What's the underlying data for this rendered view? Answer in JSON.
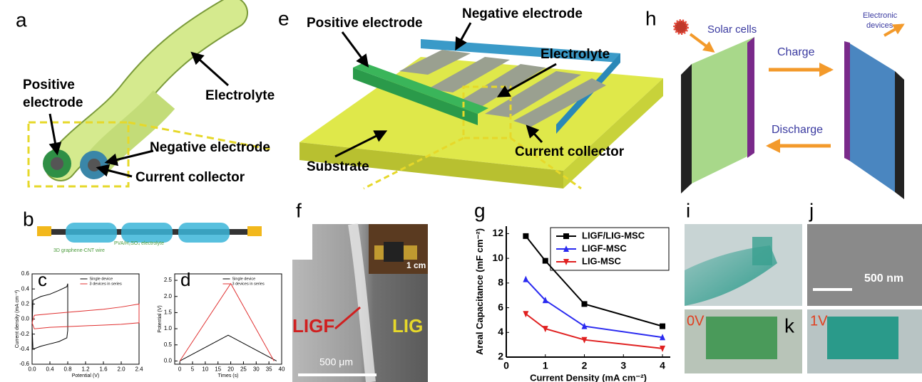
{
  "panels": {
    "a": {
      "label": "a",
      "positive_electrode": [
        "Positive",
        "electrode"
      ],
      "electrolyte": "Electrolyte",
      "negative_electrode": "Negative electrode",
      "current_collector": "Current collector"
    },
    "b": {
      "label": "b",
      "wire": "3D graphene-CNT wire",
      "electrolyte": "PVA/H₂SO₄ electrolyte"
    },
    "e": {
      "label": "e",
      "positive_electrode": "Positive electrode",
      "negative_electrode": "Negative electrode",
      "electrolyte": "Electrolyte",
      "current_collector": "Current collector",
      "substrate": "Substrate"
    },
    "f": {
      "label": "f",
      "ligf": "LIGF",
      "lig": "LIG",
      "inset_scale": "1 cm",
      "scale": "500 μm"
    },
    "h": {
      "label": "h",
      "solar_cells": "Solar cells",
      "electronic_devices": [
        "Electronic",
        "devices"
      ],
      "charge": "Charge",
      "discharge": "Discharge"
    },
    "i": {
      "label": "i"
    },
    "j": {
      "label": "j",
      "scale": "500 nm"
    },
    "k": {
      "label": "k",
      "off": "0V",
      "on": "1V"
    }
  },
  "chart_data": [
    {
      "type": "line",
      "label": "c",
      "xlabel": "Potential (V)",
      "ylabel": "Current density (mA cm⁻²)",
      "xlim": [
        0,
        2.4
      ],
      "xticks": [
        {
          "value": 0,
          "label": "0.0"
        },
        0.4,
        0.8,
        1.2,
        1.6,
        {
          "value": 2,
          "label": "2.0"
        },
        2.4
      ],
      "ylim": [
        -0.6,
        0.6
      ],
      "yticks": [
        -0.6,
        -0.4,
        -0.2,
        {
          "value": 0,
          "label": "0.0"
        },
        0.2,
        0.4,
        0.6
      ],
      "series": [
        {
          "name": "Single device",
          "color": "#000000",
          "x": [
            0,
            0.02,
            0.2,
            0.4,
            0.6,
            0.78,
            0.8,
            0.8,
            0.78,
            0.6,
            0.4,
            0.2,
            0.02,
            0
          ],
          "values": [
            -0.1,
            0.25,
            0.3,
            0.33,
            0.38,
            0.43,
            0.47,
            -0.15,
            -0.25,
            -0.3,
            -0.33,
            -0.36,
            -0.4,
            -0.1
          ]
        },
        {
          "name": "3 devices in series",
          "color": "#e03030",
          "x": [
            0,
            0.05,
            0.4,
            0.8,
            1.2,
            1.6,
            2,
            2.4,
            2.4,
            2,
            1.6,
            1.2,
            0.8,
            0.4,
            0.05,
            0
          ],
          "values": [
            -0.05,
            0.05,
            0.07,
            0.09,
            0.11,
            0.13,
            0.16,
            0.2,
            -0.05,
            -0.07,
            -0.08,
            -0.09,
            -0.1,
            -0.11,
            -0.13,
            -0.05
          ]
        }
      ]
    },
    {
      "type": "line",
      "label": "d",
      "xlabel": "Times (s)",
      "ylabel": "Potential (V)",
      "xlim": [
        -2,
        40
      ],
      "xticks": [
        0,
        5,
        10,
        15,
        20,
        25,
        30,
        35,
        40
      ],
      "ylim": [
        -0.1,
        2.7
      ],
      "yticks": [
        {
          "value": 0,
          "label": "0.0"
        },
        0.5,
        {
          "value": 1,
          "label": "1.0"
        },
        1.5,
        {
          "value": 2,
          "label": "2.0"
        },
        2.5
      ],
      "series": [
        {
          "name": "Single device",
          "color": "#000000",
          "x": [
            0,
            19,
            38
          ],
          "values": [
            0,
            0.8,
            0
          ]
        },
        {
          "name": "3 devices in series",
          "color": "#e03030",
          "x": [
            0,
            20,
            37
          ],
          "values": [
            0,
            2.4,
            0
          ]
        }
      ]
    },
    {
      "type": "line",
      "label": "g",
      "xlabel": "Current Density (mA cm⁻²)",
      "ylabel": "Areal Capacitance (mF cm⁻²)",
      "xlim": [
        0,
        4.2
      ],
      "xticks": [
        0,
        1,
        2,
        3,
        4
      ],
      "ylim": [
        2,
        12.6
      ],
      "yticks": [
        2,
        4,
        6,
        8,
        10,
        12
      ],
      "x": [
        0.5,
        1,
        2,
        4
      ],
      "series": [
        {
          "name": "LIGF/LIG-MSC",
          "color": "#000000",
          "marker": "square",
          "values": [
            11.8,
            9.8,
            6.3,
            4.5
          ]
        },
        {
          "name": "LIGF-MSC",
          "color": "#2a2af0",
          "marker": "triangle",
          "values": [
            8.3,
            6.6,
            4.5,
            3.6
          ]
        },
        {
          "name": "LIG-MSC",
          "color": "#e02020",
          "marker": "triangle-down",
          "values": [
            5.5,
            4.3,
            3.4,
            2.7
          ]
        }
      ]
    }
  ]
}
